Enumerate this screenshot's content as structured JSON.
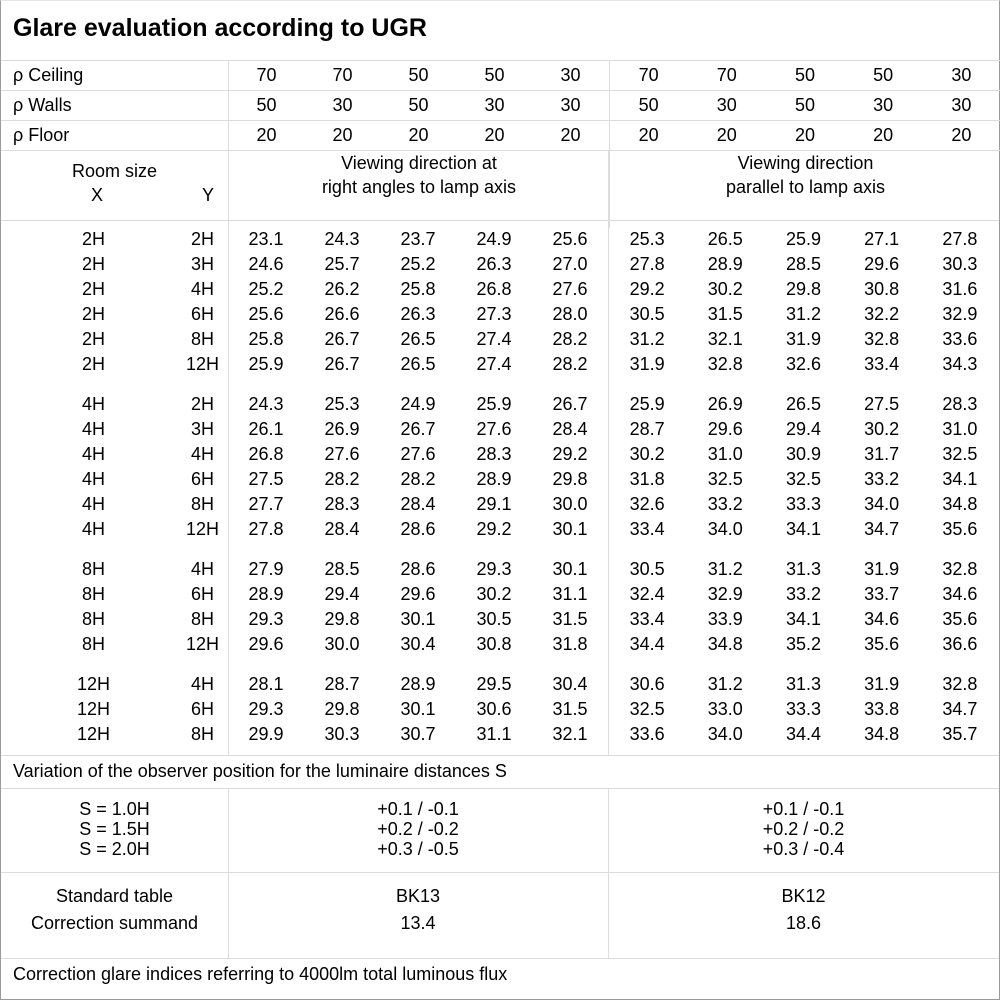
{
  "title": "Glare evaluation according to UGR",
  "reflectance": [
    {
      "label": "ρ Ceiling",
      "values": [
        "70",
        "70",
        "50",
        "50",
        "30",
        "70",
        "70",
        "50",
        "50",
        "30"
      ]
    },
    {
      "label": "ρ Walls",
      "values": [
        "50",
        "30",
        "50",
        "30",
        "30",
        "50",
        "30",
        "50",
        "30",
        "30"
      ]
    },
    {
      "label": "ρ Floor",
      "values": [
        "20",
        "20",
        "20",
        "20",
        "20",
        "20",
        "20",
        "20",
        "20",
        "20"
      ]
    }
  ],
  "header": {
    "room_size": "Room size",
    "x": "X",
    "y": "Y",
    "dir_right_line1": "Viewing direction at",
    "dir_right_line2": "right angles to lamp axis",
    "dir_parallel_line1": "Viewing direction",
    "dir_parallel_line2": "parallel to lamp axis"
  },
  "groups": [
    {
      "rows": [
        {
          "x": "2H",
          "y": "2H",
          "v": [
            "23.1",
            "24.3",
            "23.7",
            "24.9",
            "25.6",
            "25.3",
            "26.5",
            "25.9",
            "27.1",
            "27.8"
          ]
        },
        {
          "x": "2H",
          "y": "3H",
          "v": [
            "24.6",
            "25.7",
            "25.2",
            "26.3",
            "27.0",
            "27.8",
            "28.9",
            "28.5",
            "29.6",
            "30.3"
          ]
        },
        {
          "x": "2H",
          "y": "4H",
          "v": [
            "25.2",
            "26.2",
            "25.8",
            "26.8",
            "27.6",
            "29.2",
            "30.2",
            "29.8",
            "30.8",
            "31.6"
          ]
        },
        {
          "x": "2H",
          "y": "6H",
          "v": [
            "25.6",
            "26.6",
            "26.3",
            "27.3",
            "28.0",
            "30.5",
            "31.5",
            "31.2",
            "32.2",
            "32.9"
          ]
        },
        {
          "x": "2H",
          "y": "8H",
          "v": [
            "25.8",
            "26.7",
            "26.5",
            "27.4",
            "28.2",
            "31.2",
            "32.1",
            "31.9",
            "32.8",
            "33.6"
          ]
        },
        {
          "x": "2H",
          "y": "12H",
          "v": [
            "25.9",
            "26.7",
            "26.5",
            "27.4",
            "28.2",
            "31.9",
            "32.8",
            "32.6",
            "33.4",
            "34.3"
          ]
        }
      ]
    },
    {
      "rows": [
        {
          "x": "4H",
          "y": "2H",
          "v": [
            "24.3",
            "25.3",
            "24.9",
            "25.9",
            "26.7",
            "25.9",
            "26.9",
            "26.5",
            "27.5",
            "28.3"
          ]
        },
        {
          "x": "4H",
          "y": "3H",
          "v": [
            "26.1",
            "26.9",
            "26.7",
            "27.6",
            "28.4",
            "28.7",
            "29.6",
            "29.4",
            "30.2",
            "31.0"
          ]
        },
        {
          "x": "4H",
          "y": "4H",
          "v": [
            "26.8",
            "27.6",
            "27.6",
            "28.3",
            "29.2",
            "30.2",
            "31.0",
            "30.9",
            "31.7",
            "32.5"
          ]
        },
        {
          "x": "4H",
          "y": "6H",
          "v": [
            "27.5",
            "28.2",
            "28.2",
            "28.9",
            "29.8",
            "31.8",
            "32.5",
            "32.5",
            "33.2",
            "34.1"
          ]
        },
        {
          "x": "4H",
          "y": "8H",
          "v": [
            "27.7",
            "28.3",
            "28.4",
            "29.1",
            "30.0",
            "32.6",
            "33.2",
            "33.3",
            "34.0",
            "34.8"
          ]
        },
        {
          "x": "4H",
          "y": "12H",
          "v": [
            "27.8",
            "28.4",
            "28.6",
            "29.2",
            "30.1",
            "33.4",
            "34.0",
            "34.1",
            "34.7",
            "35.6"
          ]
        }
      ]
    },
    {
      "rows": [
        {
          "x": "8H",
          "y": "4H",
          "v": [
            "27.9",
            "28.5",
            "28.6",
            "29.3",
            "30.1",
            "30.5",
            "31.2",
            "31.3",
            "31.9",
            "32.8"
          ]
        },
        {
          "x": "8H",
          "y": "6H",
          "v": [
            "28.9",
            "29.4",
            "29.6",
            "30.2",
            "31.1",
            "32.4",
            "32.9",
            "33.2",
            "33.7",
            "34.6"
          ]
        },
        {
          "x": "8H",
          "y": "8H",
          "v": [
            "29.3",
            "29.8",
            "30.1",
            "30.5",
            "31.5",
            "33.4",
            "33.9",
            "34.1",
            "34.6",
            "35.6"
          ]
        },
        {
          "x": "8H",
          "y": "12H",
          "v": [
            "29.6",
            "30.0",
            "30.4",
            "30.8",
            "31.8",
            "34.4",
            "34.8",
            "35.2",
            "35.6",
            "36.6"
          ]
        }
      ]
    },
    {
      "rows": [
        {
          "x": "12H",
          "y": "4H",
          "v": [
            "28.1",
            "28.7",
            "28.9",
            "29.5",
            "30.4",
            "30.6",
            "31.2",
            "31.3",
            "31.9",
            "32.8"
          ]
        },
        {
          "x": "12H",
          "y": "6H",
          "v": [
            "29.3",
            "29.8",
            "30.1",
            "30.6",
            "31.5",
            "32.5",
            "33.0",
            "33.3",
            "33.8",
            "34.7"
          ]
        },
        {
          "x": "12H",
          "y": "8H",
          "v": [
            "29.9",
            "30.3",
            "30.7",
            "31.1",
            "32.1",
            "33.6",
            "34.0",
            "34.4",
            "34.8",
            "35.7"
          ]
        }
      ]
    }
  ],
  "variation": {
    "title": "Variation of the observer position for the luminaire distances S",
    "s_labels": [
      "S = 1.0H",
      "S = 1.5H",
      "S = 2.0H"
    ],
    "right_angles": [
      "+0.1 / -0.1",
      "+0.2 / -0.2",
      "+0.3 / -0.5"
    ],
    "parallel": [
      "+0.1 / -0.1",
      "+0.2 / -0.2",
      "+0.3 / -0.4"
    ]
  },
  "standard": {
    "label_table": "Standard table",
    "label_summand": "Correction summand",
    "right_table": "BK13",
    "right_summand": "13.4",
    "parallel_table": "BK12",
    "parallel_summand": "18.6"
  },
  "footer": "Correction glare indices referring to 4000lm total luminous flux"
}
